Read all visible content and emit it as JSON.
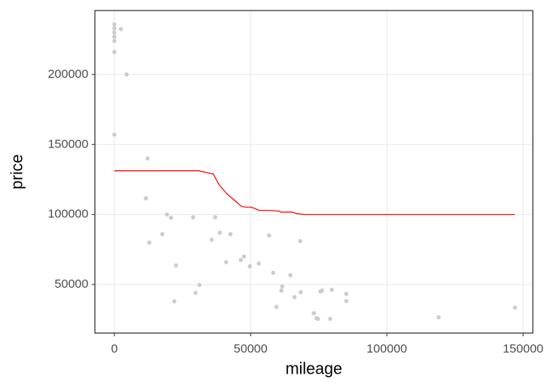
{
  "chart_data": {
    "type": "scatter",
    "x_label": "mileage",
    "y_label": "price",
    "xlim": [
      -7143,
      153571
    ],
    "ylim": [
      15318,
      245665
    ],
    "xticks": [
      0,
      50000,
      100000,
      150000
    ],
    "yticks": [
      50000,
      100000,
      150000,
      200000
    ],
    "grid": true,
    "series": [
      {
        "type": "scatter",
        "color": "#cccccc",
        "x": [
          0,
          0,
          0,
          0,
          0,
          2400,
          0,
          4500,
          0,
          12200,
          11600,
          12800,
          19300,
          20800,
          17600,
          22600,
          22000,
          28900,
          31200,
          29800,
          37000,
          38700,
          35700,
          42600,
          41000,
          47600,
          46400,
          49700,
          53000,
          56800,
          58300,
          61600,
          61300,
          59500,
          64600,
          66100,
          68400,
          68200,
          73200,
          74100,
          74700,
          76200,
          75600,
          79800,
          79200,
          85100,
          85100,
          119000,
          147000
        ],
        "values": [
          235800,
          233000,
          230000,
          227000,
          224000,
          232400,
          216000,
          200000,
          157000,
          140000,
          111600,
          80000,
          100000,
          97700,
          86000,
          63600,
          38000,
          98000,
          49700,
          44000,
          98000,
          87000,
          82000,
          86000,
          66000,
          70000,
          67500,
          63000,
          65000,
          85000,
          58400,
          48600,
          45700,
          34000,
          56700,
          41000,
          44500,
          81000,
          29500,
          26000,
          25500,
          45700,
          45000,
          46300,
          25500,
          43400,
          38200,
          26600,
          33500
        ]
      },
      {
        "type": "line",
        "color": "#ff0000",
        "x": [
          0,
          31000,
          36300,
          38400,
          41400,
          44300,
          46700,
          48500,
          50300,
          53300,
          57700,
          60700,
          61000,
          65200,
          67000,
          69900,
          73500,
          147000
        ],
        "values": [
          131200,
          131200,
          128900,
          121400,
          114500,
          109800,
          105800,
          105200,
          105200,
          102900,
          102900,
          102300,
          101700,
          101700,
          100600,
          100000,
          100000,
          100000
        ]
      }
    ]
  }
}
